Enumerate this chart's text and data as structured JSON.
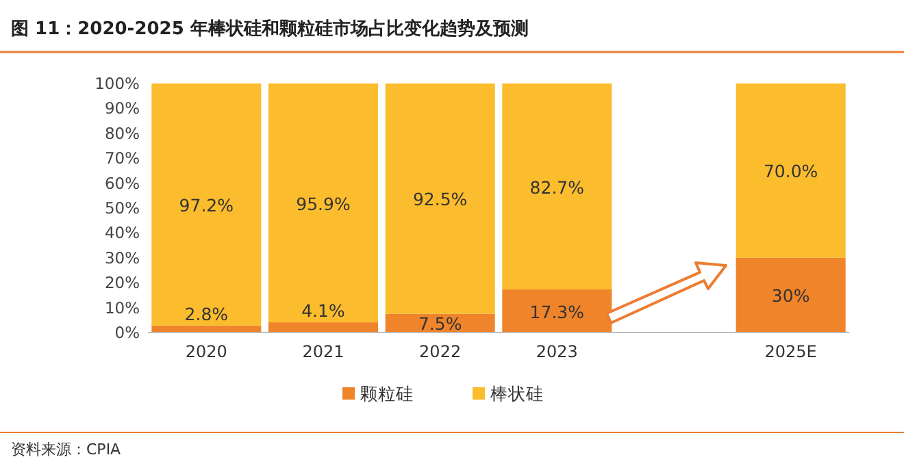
{
  "chart_data": {
    "type": "bar",
    "stacked": true,
    "title": "图 11：2020-2025 年棒状硅和颗粒硅市场占比变化趋势及预测",
    "categories": [
      "2020",
      "2021",
      "2022",
      "2023",
      null,
      "2025E"
    ],
    "series": [
      {
        "name": "颗粒硅",
        "color": "#F0842A",
        "values": [
          2.8,
          4.1,
          7.5,
          17.3,
          null,
          30
        ],
        "value_labels": [
          "2.8%",
          "4.1%",
          "7.5%",
          "17.3%",
          null,
          "30%"
        ]
      },
      {
        "name": "棒状硅",
        "color": "#FBBC2D",
        "values": [
          97.2,
          95.9,
          92.5,
          82.7,
          null,
          70
        ],
        "value_labels": [
          "97.2%",
          "95.9%",
          "92.5%",
          "82.7%",
          null,
          "70.0%"
        ]
      }
    ],
    "ylim": [
      0,
      100
    ],
    "yticks": [
      {
        "value": 0,
        "label": "0%"
      },
      {
        "value": 10,
        "label": "10%"
      },
      {
        "value": 20,
        "label": "20%"
      },
      {
        "value": 30,
        "label": "30%"
      },
      {
        "value": 40,
        "label": "40%"
      },
      {
        "value": 50,
        "label": "50%"
      },
      {
        "value": 60,
        "label": "60%"
      },
      {
        "value": 70,
        "label": "70%"
      },
      {
        "value": 80,
        "label": "80%"
      },
      {
        "value": 90,
        "label": "90%"
      },
      {
        "value": 100,
        "label": "100%"
      }
    ],
    "grid": false,
    "legend": "bottom",
    "annotations": [
      "资料来源：CPIA"
    ]
  }
}
